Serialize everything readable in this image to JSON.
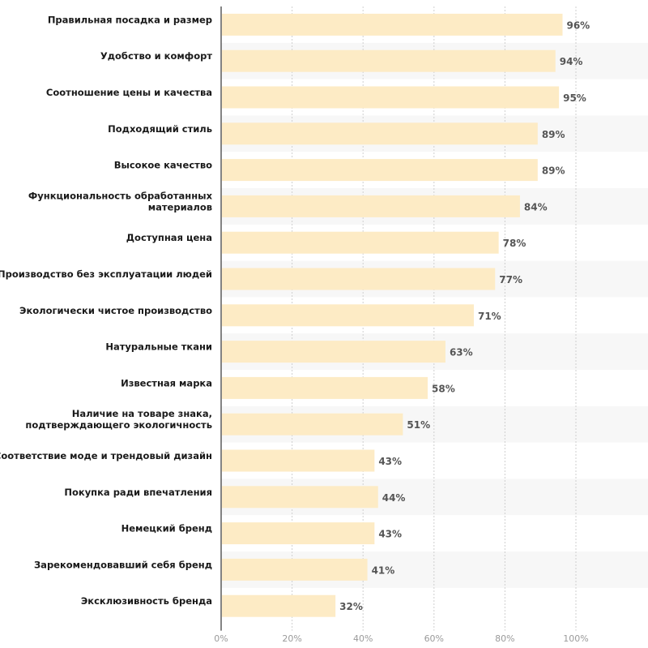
{
  "colors": {
    "bar": "#fdebc5",
    "band": "#f7f7f7",
    "grid": "#cfcfcf",
    "axis": "#333333"
  },
  "chart_data": {
    "type": "bar",
    "orientation": "horizontal",
    "title": "",
    "xlabel": "",
    "ylabel": "",
    "xlim": [
      0,
      100
    ],
    "grid": true,
    "ticks": [
      "0%",
      "20%",
      "40%",
      "60%",
      "80%",
      "100%"
    ],
    "tick_values": [
      0,
      20,
      40,
      60,
      80,
      100
    ],
    "categories": [
      [
        "Правильная посадка и размер"
      ],
      [
        "Удобство и комфорт"
      ],
      [
        "Соотношение цены и качества"
      ],
      [
        "Подходящий стиль"
      ],
      [
        "Высокое качество"
      ],
      [
        "Функциональность обработанных",
        "материалов"
      ],
      [
        "Доступная цена"
      ],
      [
        "Производство без эксплуатации людей"
      ],
      [
        "Экологически чистое производство"
      ],
      [
        "Натуральные ткани"
      ],
      [
        "Известная марка"
      ],
      [
        "Наличие на товаре знака,",
        "подтверждающего экологичность"
      ],
      [
        "Соответствие моде и трендовый дизайн"
      ],
      [
        "Покупка ради впечатления"
      ],
      [
        "Немецкий бренд"
      ],
      [
        "Зарекомендовавший себя бренд"
      ],
      [
        "Эксклюзивность бренда"
      ]
    ],
    "values": [
      96,
      94,
      95,
      89,
      89,
      84,
      78,
      77,
      71,
      63,
      58,
      51,
      43,
      44,
      43,
      41,
      32
    ],
    "value_labels": [
      "96%",
      "94%",
      "95%",
      "89%",
      "89%",
      "84%",
      "78%",
      "77%",
      "71%",
      "63%",
      "58%",
      "51%",
      "43%",
      "44%",
      "43%",
      "41%",
      "32%"
    ]
  }
}
